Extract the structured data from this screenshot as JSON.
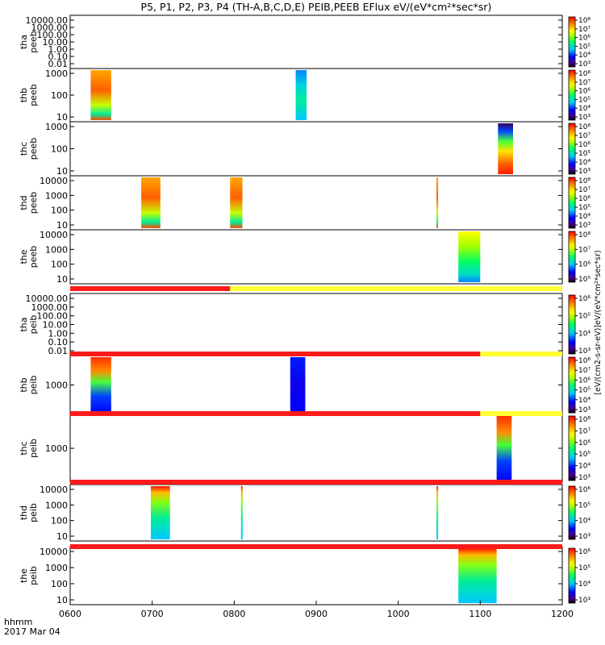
{
  "title": "P5, P1, P2, P3, P4 (TH-A,B,C,D,E) PEIB,PEEB EFlux eV/(eV*cm²*sec*sr)",
  "chart_data": {
    "type": "heatmap",
    "title": "P5, P1, P2, P3, P4 (TH-A,B,C,D,E) PEIB,PEEB EFlux eV/(eV*cm²*sec*sr)",
    "x_axis": {
      "label_lines": [
        "hhmm",
        "2017 Mar 04"
      ],
      "tick_labels": [
        "0600",
        "0700",
        "0800",
        "0900",
        "1000",
        "1100",
        "1200"
      ],
      "range": [
        "0600",
        "1200"
      ]
    },
    "colorbar_label": "[eV/(cm2-s-sr-eV)]eV/(eV*cm²*sec*sr)",
    "panels": [
      {
        "probe": "tha",
        "species": "peeb",
        "yticks": [
          "10000.00",
          "1000.00",
          "100.00",
          "10.00",
          "1.00",
          "0.10",
          "0.01"
        ],
        "cbticks": [
          "10⁸",
          "10⁷",
          "10⁶",
          "10⁵",
          "10⁴",
          "10³"
        ],
        "cbar_min": 3,
        "cbar_max": 8,
        "segments": []
      },
      {
        "probe": "thb",
        "species": "peeb",
        "yticks": [
          "1000",
          "100",
          "10"
        ],
        "cbticks": [
          "10⁸",
          "10⁷",
          "10⁶",
          "10⁵",
          "10⁴",
          "10³"
        ],
        "cbar_min": 3,
        "cbar_max": 8,
        "segments": [
          {
            "start": "0615",
            "end": "0630",
            "palette": "warm"
          },
          {
            "start": "0845",
            "end": "0853",
            "palette": "cool"
          }
        ]
      },
      {
        "probe": "thc",
        "species": "peeb",
        "yticks": [
          "1000",
          "100",
          "10"
        ],
        "cbticks": [
          "10⁸",
          "10⁷",
          "10⁶",
          "10⁵",
          "10⁴",
          "10³"
        ],
        "cbar_min": 3,
        "cbar_max": 8,
        "segments": [
          {
            "start": "1073",
            "end": "1084",
            "palette": "warm_top_dark"
          }
        ]
      },
      {
        "probe": "thd",
        "species": "peeb",
        "yticks": [
          "10000",
          "1000",
          "100",
          "10"
        ],
        "cbticks": [
          "10⁸",
          "10⁷",
          "10⁶",
          "10⁵",
          "10⁴",
          "10³"
        ],
        "cbar_min": 3,
        "cbar_max": 8,
        "segments": [
          {
            "start": "0652",
            "end": "0666",
            "palette": "warm"
          },
          {
            "start": "0757",
            "end": "0806",
            "palette": "warm"
          },
          {
            "start": "0988",
            "end": "1020",
            "palette": "warm"
          }
        ]
      },
      {
        "probe": "the",
        "species": "peeb",
        "yticks": [
          "10000",
          "1000",
          "100",
          "10"
        ],
        "cbticks": [
          "10⁸",
          "10⁷",
          "10⁶",
          "10⁵"
        ],
        "cbar_min": 5,
        "cbar_max": 8,
        "segments": [
          {
            "start": "1044",
            "end": "1060",
            "palette": "yellow_green"
          }
        ]
      },
      {
        "probe": "tha",
        "species": "peib",
        "yticks": [
          "10000.00",
          "1000.00",
          "100.00",
          "10.00",
          "1.00",
          "0.10",
          "0.01"
        ],
        "cbticks": [
          "10⁶",
          "10⁵",
          "10⁴",
          "10³"
        ],
        "cbar_min": 3,
        "cbar_max": 6,
        "segments": []
      },
      {
        "probe": "thb",
        "species": "peib",
        "yticks": [
          "1000"
        ],
        "cbticks": [
          "10⁸",
          "10⁷",
          "10⁶",
          "10⁵",
          "10⁴",
          "10³"
        ],
        "cbar_min": 3,
        "cbar_max": 8,
        "segments": [
          {
            "start": "0615",
            "end": "0630",
            "palette": "warm_blue_bottom"
          },
          {
            "start": "0841",
            "end": "0852",
            "palette": "blue"
          }
        ]
      },
      {
        "probe": "thc",
        "species": "peib",
        "yticks": [
          "1000"
        ],
        "cbticks": [
          "10⁸",
          "10⁷",
          "10⁶",
          "10⁵",
          "10⁴",
          "10³"
        ],
        "cbar_min": 3,
        "cbar_max": 8,
        "segments": [
          {
            "start": "1072",
            "end": "1083",
            "palette": "warm_blue_bottom"
          }
        ]
      },
      {
        "probe": "thd",
        "species": "peib",
        "yticks": [
          "10000",
          "1000",
          "100",
          "10"
        ],
        "cbticks": [
          "10⁶",
          "10⁵",
          "10⁴",
          "10³"
        ],
        "cbar_min": 3,
        "cbar_max": 6,
        "segments": [
          {
            "start": "0659",
            "end": "0673",
            "palette": "ion"
          },
          {
            "start": "0765",
            "end": "0800",
            "palette": "ion"
          },
          {
            "start": "0988",
            "end": "1025",
            "palette": "ion"
          }
        ]
      },
      {
        "probe": "the",
        "species": "peib",
        "yticks": [
          "10000",
          "1000",
          "100",
          "10"
        ],
        "cbticks": [
          "10⁶",
          "10⁵",
          "10⁴",
          "10³"
        ],
        "cbar_min": 3,
        "cbar_max": 6,
        "segments": [
          {
            "start": "1044",
            "end": "1072",
            "palette": "ion"
          }
        ]
      }
    ],
    "status_bars": [
      {
        "after_panel": 4,
        "segments": [
          {
            "start": "0600",
            "end": "0757",
            "color": "#ff1a1a"
          },
          {
            "start": "0757",
            "end": "1200",
            "color": "#ffff33"
          }
        ]
      },
      {
        "after_panel": 5,
        "segments": [
          {
            "start": "0600",
            "end": "1100",
            "color": "#ff1a1a"
          },
          {
            "start": "1100",
            "end": "1200",
            "color": "#ffff33"
          }
        ]
      },
      {
        "after_panel": 6,
        "segments": [
          {
            "start": "0600",
            "end": "1100",
            "color": "#ff1a1a"
          },
          {
            "start": "1100",
            "end": "1200",
            "color": "#ffff33"
          }
        ]
      },
      {
        "after_panel": 7,
        "segments": [
          {
            "start": "0600",
            "end": "1200",
            "color": "#ff1a1a"
          }
        ]
      },
      {
        "after_panel": 8,
        "segments": [
          {
            "start": "0600",
            "end": "1200",
            "color": "#ff1a1a"
          }
        ]
      }
    ],
    "grid": false
  }
}
